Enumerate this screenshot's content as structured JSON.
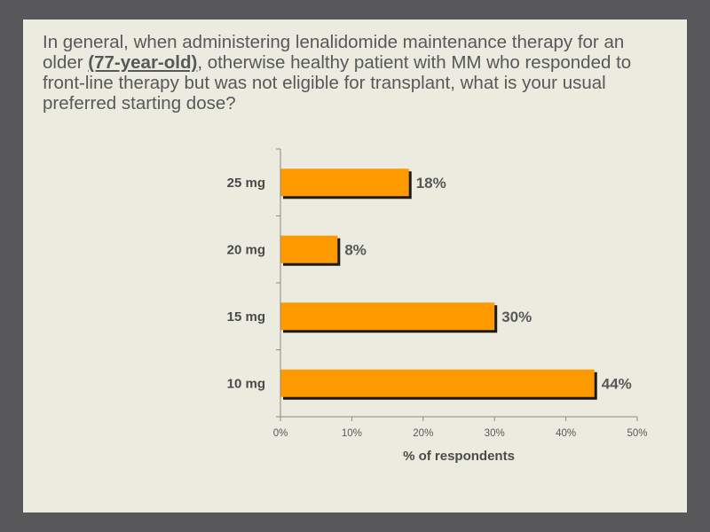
{
  "question": {
    "before": "In general, when administering lenalidomide maintenance therapy for an older ",
    "emphasis": "(77-year-old)",
    "after": ", otherwise healthy patient with MM who responded to front-line therapy but was not eligible for transplant, what is your usual preferred starting dose?"
  },
  "colors": {
    "bar": "#ff9900",
    "bar_shadow": "#1a1a1a",
    "axis": "#8a8a8a",
    "text": "#58585a"
  },
  "chart_data": {
    "type": "bar",
    "orientation": "horizontal",
    "categories": [
      "25 mg",
      "20 mg",
      "15 mg",
      "10 mg"
    ],
    "values": [
      18,
      8,
      30,
      44
    ],
    "value_labels": [
      "18%",
      "8%",
      "30%",
      "44%"
    ],
    "xlabel": "% of respondents",
    "ylabel": "",
    "xlim": [
      0,
      50
    ],
    "xticks": [
      0,
      10,
      20,
      30,
      40,
      50
    ],
    "xtick_labels": [
      "0%",
      "10%",
      "20%",
      "30%",
      "40%",
      "50%"
    ],
    "grid": false,
    "legend": "none"
  }
}
